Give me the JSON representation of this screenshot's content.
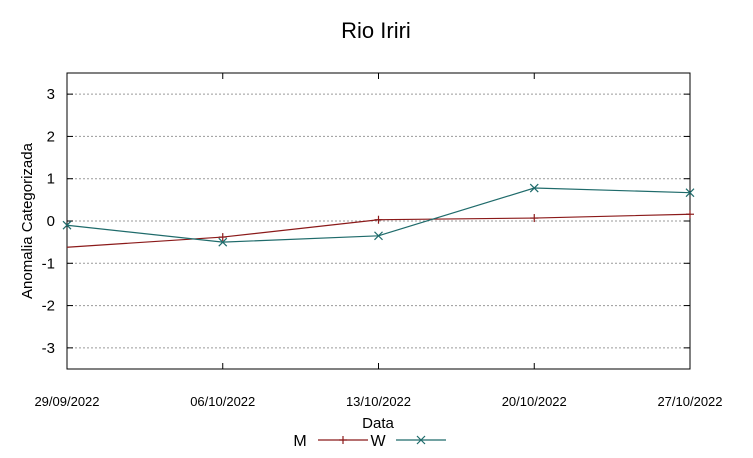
{
  "chart_data": {
    "type": "line",
    "title": "Rio Iriri",
    "xlabel": "Data",
    "ylabel": "Anomalia Categorizada",
    "x": [
      "29/09/2022",
      "06/10/2022",
      "13/10/2022",
      "20/10/2022",
      "27/10/2022"
    ],
    "x_values": [
      0,
      7,
      14,
      21,
      28
    ],
    "ylim": [
      -3.5,
      3.5
    ],
    "yticks": [
      -3,
      -2,
      -1,
      0,
      1,
      2,
      3
    ],
    "grid": "horizontal-dashed",
    "legend_position": "bottom-center",
    "series": [
      {
        "name": "M",
        "color": "#8b1a1a",
        "marker": "plus",
        "x": [
          -0.5,
          7,
          14,
          21,
          28
        ],
        "y": [
          -0.62,
          -0.38,
          0.03,
          0.07,
          0.16
        ]
      },
      {
        "name": "W",
        "color": "#1f6b6b",
        "marker": "cross",
        "x": [
          0,
          7,
          14,
          21,
          28
        ],
        "y": [
          -0.1,
          -0.5,
          -0.35,
          0.78,
          0.67
        ]
      }
    ]
  }
}
